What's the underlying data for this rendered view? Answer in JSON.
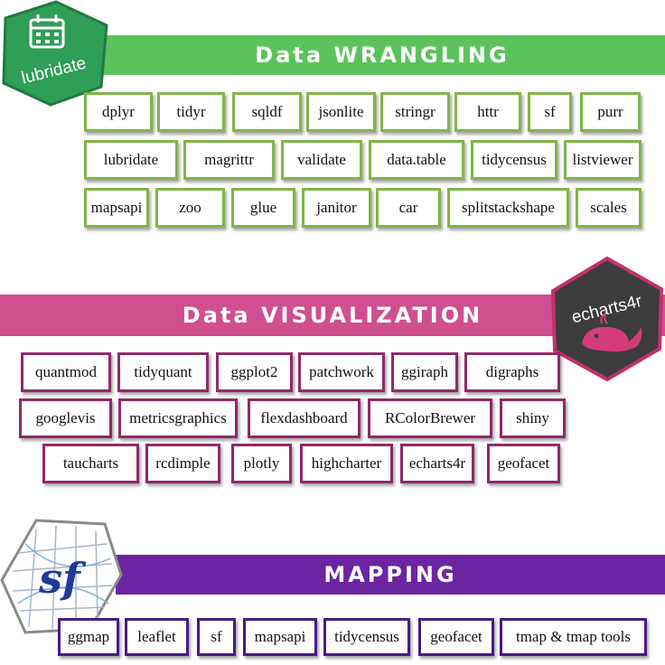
{
  "sections": {
    "wrangling": {
      "title": "Data WRANGLING",
      "logo_text": "lubridate",
      "rows": [
        [
          "dplyr",
          "tidyr",
          "sqldf",
          "jsonlite",
          "stringr",
          "httr",
          "sf",
          "purr"
        ],
        [
          "lubridate",
          "magrittr",
          "validate",
          "data.table",
          "tidycensus",
          "listviewer"
        ],
        [
          "mapsapi",
          "zoo",
          "glue",
          "janitor",
          "car",
          "splitstackshape",
          "scales"
        ]
      ]
    },
    "visualization": {
      "title": "Data VISUALIZATION",
      "logo_text": "echarts4r",
      "rows": [
        [
          "quantmod",
          "tidyquant",
          "ggplot2",
          "patchwork",
          "ggiraph",
          "digraphs"
        ],
        [
          "googlevis",
          "metricsgraphics",
          "flexdashboard",
          "RColorBrewer",
          "shiny"
        ],
        [
          "taucharts",
          "rcdimple",
          "plotly",
          "highcharter",
          "echarts4r",
          "geofacet"
        ]
      ]
    },
    "mapping": {
      "title": "MAPPING",
      "logo_text": "sf",
      "rows": [
        [
          "ggmap",
          "leaflet",
          "sf",
          "mapsapi",
          "tidycensus",
          "geofacet",
          "tmap & tmap tools"
        ]
      ]
    }
  },
  "colors": {
    "green": "#5cc35c",
    "pink": "#cf4f8f",
    "purple": "#6d24a3"
  },
  "icons": [
    "calendar-icon",
    "whale-icon",
    "sf-grid-icon"
  ]
}
